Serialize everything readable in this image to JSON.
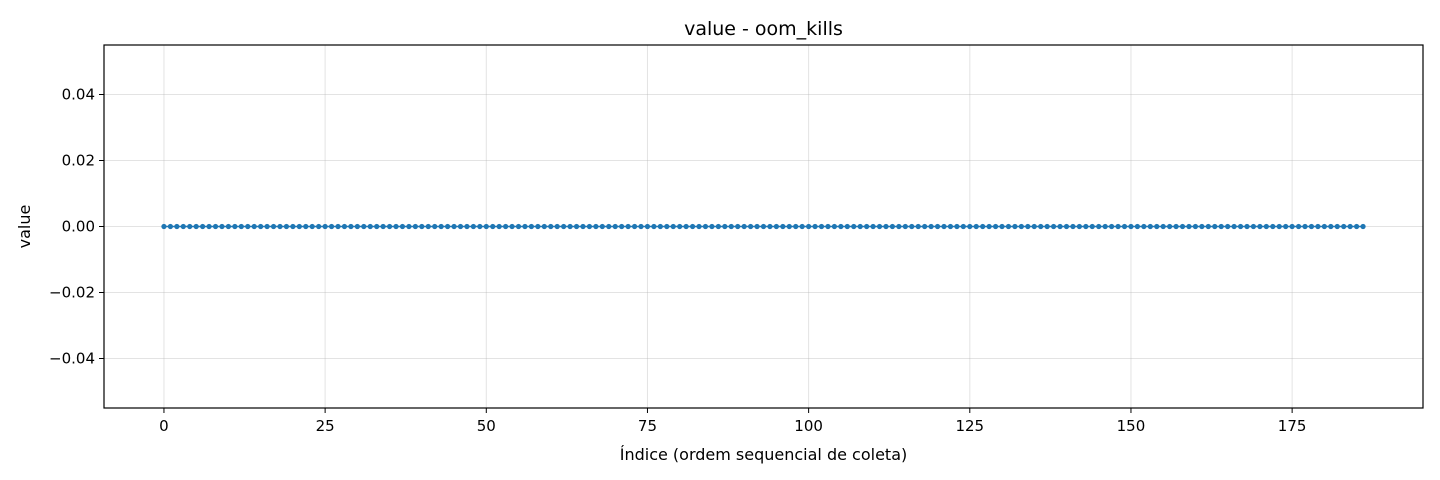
{
  "chart_data": {
    "type": "line",
    "title": "value - oom_kills",
    "xlabel": "Índice (ordem sequencial de coleta)",
    "ylabel": "value",
    "xlim": [
      -9.3,
      195.3
    ],
    "ylim": [
      -0.055,
      0.055
    ],
    "x_ticks": [
      0,
      25,
      50,
      75,
      100,
      125,
      150,
      175
    ],
    "x_tick_labels": [
      "0",
      "25",
      "50",
      "75",
      "100",
      "125",
      "150",
      "175"
    ],
    "y_ticks": [
      -0.04,
      -0.02,
      0.0,
      0.02,
      0.04
    ],
    "y_tick_labels": [
      "−0.04",
      "−0.02",
      "0.00",
      "0.02",
      "0.04"
    ],
    "grid": true,
    "legend": false,
    "series_color": "#1f77b4",
    "series": [
      {
        "x_start": 0,
        "x_end": 186,
        "x_step": 1,
        "constant_value": 0
      }
    ]
  }
}
